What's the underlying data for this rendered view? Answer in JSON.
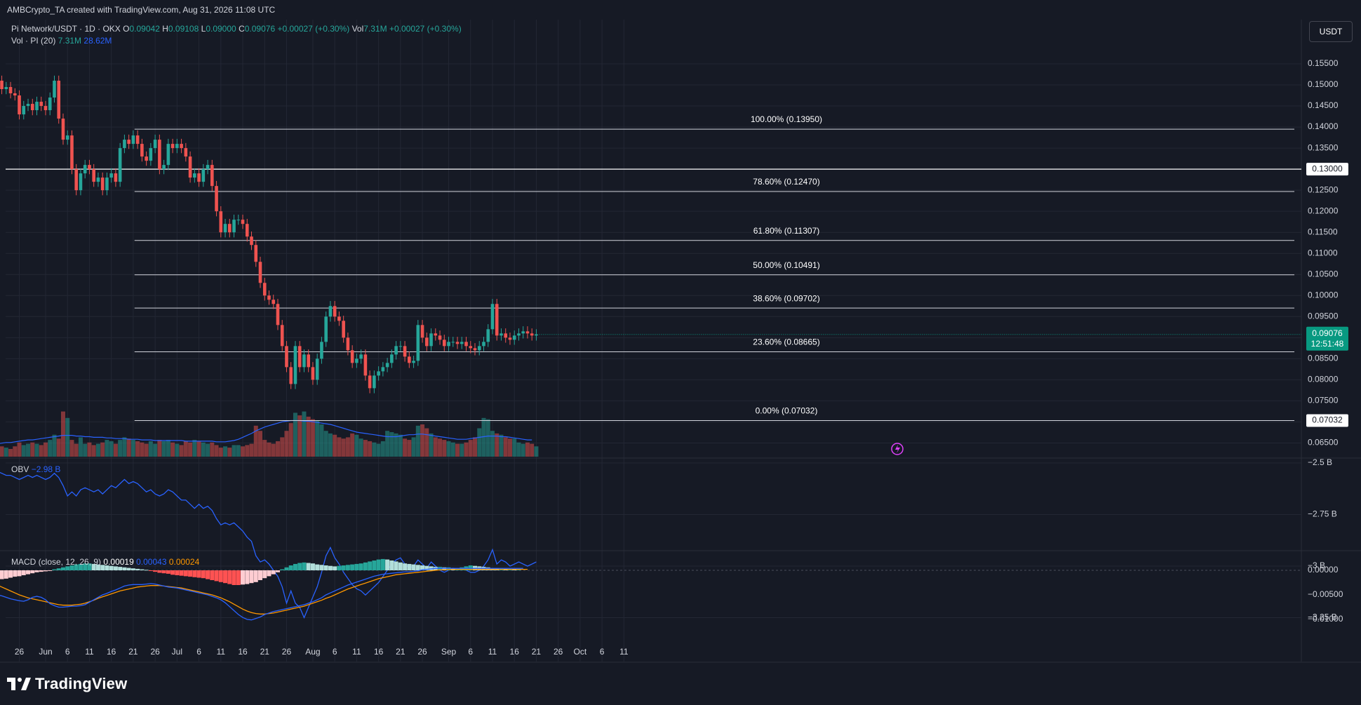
{
  "header": {
    "credit": "AMBCrypto_TA created with TradingView.com, Aug 31, 2026 11:08 UTC",
    "symbol": "Pi Network/USDT · 1D · OKX",
    "ohlc": {
      "o_label": "O",
      "o": "0.09042",
      "h_label": "H",
      "h": "0.09108",
      "l_label": "L",
      "l": "0.09000",
      "c_label": "C",
      "c": "0.09076",
      "change": "+0.00027 (+0.30%)"
    },
    "vol_label": "Vol",
    "vol_value": "7.31M",
    "vol_change": "+0.00027 (+0.30%)",
    "vol_indicator": "Vol · PI (20)",
    "vol_a": "7.31M",
    "vol_b": "28.62M",
    "currency_button": "USDT"
  },
  "colors": {
    "up": "#26a69a",
    "down": "#ef5350",
    "background": "#161a25",
    "grid": "#232734",
    "obv_line": "#2962ff",
    "macd_line": "#2962ff",
    "signal_line": "#ff9800",
    "fib_line": "#d1d4dc",
    "price_tag": "#089981"
  },
  "chart_data": [
    {
      "type": "candlestick",
      "title": "Pi Network/USDT · 1D · OKX",
      "ylim": [
        0.0635,
        0.1575
      ],
      "y_ticks": [
        "0.15500",
        "0.15000",
        "0.14500",
        "0.14000",
        "0.13500",
        "0.13000",
        "0.12500",
        "0.12000",
        "0.11500",
        "0.11000",
        "0.10500",
        "0.10000",
        "0.09500",
        "0.09000",
        "0.08500",
        "0.08000",
        "0.07500",
        "0.07000",
        "0.06500"
      ],
      "x_ticks": [
        {
          "label": "26",
          "d": -6
        },
        {
          "label": "Jun",
          "d": 0
        },
        {
          "label": "6",
          "d": 5
        },
        {
          "label": "11",
          "d": 10
        },
        {
          "label": "16",
          "d": 15
        },
        {
          "label": "21",
          "d": 20
        },
        {
          "label": "26",
          "d": 25
        },
        {
          "label": "Jul",
          "d": 30
        },
        {
          "label": "6",
          "d": 35
        },
        {
          "label": "11",
          "d": 40
        },
        {
          "label": "16",
          "d": 45
        },
        {
          "label": "21",
          "d": 50
        },
        {
          "label": "26",
          "d": 55
        },
        {
          "label": "Aug",
          "d": 61
        },
        {
          "label": "6",
          "d": 66
        },
        {
          "label": "11",
          "d": 71
        },
        {
          "label": "16",
          "d": 76
        },
        {
          "label": "21",
          "d": 81
        },
        {
          "label": "26",
          "d": 86
        },
        {
          "label": "Sep",
          "d": 92
        },
        {
          "label": "6",
          "d": 97
        },
        {
          "label": "11",
          "d": 102
        },
        {
          "label": "16",
          "d": 107
        },
        {
          "label": "21",
          "d": 112
        },
        {
          "label": "26",
          "d": 117
        },
        {
          "label": "Oct",
          "d": 122
        },
        {
          "label": "6",
          "d": 127
        },
        {
          "label": "11",
          "d": 132
        }
      ],
      "closes": [
        0.151,
        0.149,
        0.1495,
        0.148,
        0.1475,
        0.143,
        0.145,
        0.1455,
        0.144,
        0.146,
        0.145,
        0.144,
        0.147,
        0.151,
        0.142,
        0.137,
        0.138,
        0.13,
        0.125,
        0.129,
        0.131,
        0.13,
        0.127,
        0.128,
        0.125,
        0.128,
        0.129,
        0.127,
        0.135,
        0.137,
        0.136,
        0.138,
        0.136,
        0.133,
        0.132,
        0.135,
        0.137,
        0.13,
        0.131,
        0.136,
        0.135,
        0.136,
        0.135,
        0.133,
        0.128,
        0.129,
        0.127,
        0.13,
        0.131,
        0.126,
        0.12,
        0.115,
        0.117,
        0.115,
        0.118,
        0.118,
        0.117,
        0.114,
        0.112,
        0.108,
        0.103,
        0.1,
        0.099,
        0.098,
        0.093,
        0.088,
        0.083,
        0.079,
        0.088,
        0.083,
        0.086,
        0.083,
        0.08,
        0.085,
        0.089,
        0.095,
        0.0975,
        0.095,
        0.094,
        0.09,
        0.087,
        0.084,
        0.085,
        0.086,
        0.081,
        0.078,
        0.081,
        0.082,
        0.083,
        0.084,
        0.086,
        0.088,
        0.088,
        0.0855,
        0.084,
        0.0845,
        0.093,
        0.09,
        0.088,
        0.091,
        0.0905,
        0.0895,
        0.088,
        0.089,
        0.089,
        0.0885,
        0.089,
        0.088,
        0.0875,
        0.087,
        0.088,
        0.089,
        0.092,
        0.098,
        0.0905,
        0.091,
        0.09,
        0.0895,
        0.0905,
        0.091,
        0.0915,
        0.091,
        0.0905,
        0.0908
      ],
      "fib_levels": [
        {
          "label": "100.00% (0.13950)",
          "value": 0.1395
        },
        {
          "label": "78.60% (0.12470)",
          "value": 0.1247
        },
        {
          "label": "61.80% (0.11307)",
          "value": 0.11307
        },
        {
          "label": "50.00% (0.10491)",
          "value": 0.10491
        },
        {
          "label": "38.60% (0.09702)",
          "value": 0.09702
        },
        {
          "label": "23.60% (0.08665)",
          "value": 0.08665
        },
        {
          "label": "0.00% (0.07032)",
          "value": 0.07032
        }
      ],
      "horizontal_line": {
        "value": 0.13,
        "tag": "0.13000"
      },
      "price_tags": [
        {
          "value": 0.09076,
          "label": "0.09076",
          "sub": "12:51:48"
        },
        {
          "value": 0.07032,
          "label": "0.07032"
        }
      ]
    },
    {
      "type": "bar",
      "title": "Vol · PI (20)",
      "note": "volume bars overlayed on price pane with moving-average line",
      "values": [
        18,
        16,
        14,
        12,
        16,
        22,
        18,
        20,
        22,
        20,
        18,
        22,
        26,
        34,
        28,
        70,
        60,
        26,
        20,
        30,
        20,
        22,
        18,
        20,
        22,
        26,
        24,
        20,
        26,
        30,
        28,
        26,
        24,
        22,
        20,
        24,
        20,
        26,
        24,
        26,
        22,
        20,
        18,
        24,
        22,
        26,
        24,
        22,
        20,
        22,
        18,
        14,
        16,
        14,
        18,
        18,
        16,
        18,
        20,
        48,
        40,
        26,
        22,
        20,
        24,
        30,
        40,
        52,
        68,
        64,
        70,
        62,
        58,
        56,
        50,
        40,
        36,
        34,
        30,
        28,
        30,
        36,
        34,
        28,
        26,
        24,
        22,
        20,
        24,
        40,
        38,
        36,
        34,
        28,
        26,
        30,
        48,
        50,
        44,
        36,
        30,
        28,
        26,
        24,
        22,
        20,
        20,
        22,
        26,
        30,
        44,
        60,
        58,
        40,
        36,
        34,
        30,
        28,
        28,
        22,
        20,
        22,
        20,
        16
      ],
      "vol_ma": [
        20,
        21,
        22,
        22,
        23,
        24,
        25,
        26,
        26,
        27,
        28,
        29,
        30,
        31,
        32,
        33,
        33,
        33,
        32,
        32,
        31,
        31,
        30,
        30,
        30,
        29,
        29,
        28,
        28,
        28,
        27,
        27,
        27,
        26,
        26,
        26,
        25,
        25,
        25,
        25,
        25,
        25,
        25,
        24,
        24,
        24,
        24,
        24,
        24,
        24,
        23,
        23,
        23,
        24,
        25,
        27,
        30,
        33,
        36,
        40,
        43,
        46,
        48,
        50,
        52,
        54,
        55,
        56,
        56,
        56,
        55,
        55,
        54,
        53,
        52,
        51,
        50,
        48,
        46,
        44,
        42,
        40,
        38,
        37,
        36,
        35,
        34,
        33,
        32,
        31,
        31,
        31,
        32,
        33,
        34,
        34,
        35,
        35,
        34,
        33,
        32,
        31,
        30,
        29,
        28,
        27,
        27,
        27,
        28,
        29,
        30,
        31,
        32,
        32,
        32,
        31,
        31,
        30,
        29,
        28,
        27,
        26,
        26
      ]
    },
    {
      "type": "line",
      "title": "OBV",
      "legend_value": "−2.98 B",
      "y_ticks": [
        "−2.5 B",
        "−2.75 B",
        "−3 B",
        "−3.25 B"
      ],
      "ylim": [
        -3.32,
        -2.5
      ],
      "values": [
        -2.54,
        -2.55,
        -2.56,
        -2.56,
        -2.57,
        -2.58,
        -2.57,
        -2.56,
        -2.57,
        -2.56,
        -2.57,
        -2.58,
        -2.57,
        -2.55,
        -2.57,
        -2.61,
        -2.66,
        -2.64,
        -2.66,
        -2.63,
        -2.62,
        -2.63,
        -2.64,
        -2.63,
        -2.65,
        -2.63,
        -2.61,
        -2.62,
        -2.6,
        -2.58,
        -2.6,
        -2.59,
        -2.6,
        -2.62,
        -2.64,
        -2.63,
        -2.65,
        -2.66,
        -2.65,
        -2.63,
        -2.64,
        -2.66,
        -2.68,
        -2.68,
        -2.7,
        -2.72,
        -2.7,
        -2.72,
        -2.71,
        -2.73,
        -2.77,
        -2.8,
        -2.79,
        -2.8,
        -2.79,
        -2.81,
        -2.83,
        -2.86,
        -2.88,
        -2.95,
        -2.98,
        -2.97,
        -2.99,
        -3.02,
        -3.05,
        -3.1,
        -3.18,
        -3.12,
        -3.18,
        -3.2,
        -3.25,
        -3.2,
        -3.15,
        -3.1,
        -3.03,
        -2.95,
        -2.91,
        -2.96,
        -2.99,
        -3.03,
        -3.06,
        -3.09,
        -3.11,
        -3.12,
        -3.14,
        -3.12,
        -3.1,
        -3.08,
        -3.05,
        -3.02,
        -2.99,
        -2.97,
        -2.96,
        -2.99,
        -3.01,
        -3.0,
        -2.97,
        -2.99,
        -3.01,
        -2.98,
        -3.0,
        -3.02,
        -3.03,
        -3.02,
        -3.01,
        -3.02,
        -3.01,
        -3.02,
        -3.03,
        -3.03,
        -3.02,
        -3.0,
        -2.97,
        -2.92,
        -2.99,
        -2.97,
        -2.98,
        -3.0,
        -2.99,
        -2.98,
        -2.99,
        -3.0,
        -2.99,
        -2.98
      ],
      "x_range_days": [
        -11,
        114
      ]
    },
    {
      "type": "bar",
      "title": "MACD (close, 12, 26, 9)",
      "legend_values": [
        "0.00019",
        "0.00043",
        "0.00024"
      ],
      "y_ticks": [
        "0.00000",
        "−0.00500",
        "−0.01000"
      ],
      "ylim": [
        -0.0125,
        0.0025
      ],
      "histogram": [
        -0.002,
        -0.0018,
        -0.0017,
        -0.0015,
        -0.0013,
        -0.0012,
        -0.001,
        -0.0008,
        -0.0006,
        -0.0004,
        -0.0003,
        -0.0002,
        -0.0001,
        0.0002,
        0.0004,
        0.0006,
        0.0008,
        0.001,
        0.0012,
        0.0013,
        0.0014,
        0.0014,
        0.0013,
        0.0012,
        0.0011,
        0.001,
        0.0009,
        0.0008,
        0.0007,
        0.0006,
        0.0005,
        0.0004,
        0.0003,
        0.0002,
        0.0001,
        -0.0001,
        -0.0003,
        -0.0005,
        -0.0006,
        -0.0007,
        -0.0009,
        -0.001,
        -0.0011,
        -0.0012,
        -0.0013,
        -0.0014,
        -0.0015,
        -0.0016,
        -0.0018,
        -0.002,
        -0.0022,
        -0.0024,
        -0.0026,
        -0.0028,
        -0.003,
        -0.003,
        -0.0029,
        -0.0028,
        -0.0026,
        -0.0024,
        -0.002,
        -0.0016,
        -0.0012,
        -0.0008,
        -0.0004,
        0.0002,
        0.0006,
        0.001,
        0.0013,
        0.0015,
        0.0016,
        0.0015,
        0.0014,
        0.0012,
        0.0011,
        0.001,
        0.0009,
        0.0008,
        0.0009,
        0.001,
        0.0011,
        0.0012,
        0.0013,
        0.0014,
        0.0016,
        0.0018,
        0.002,
        0.0022,
        0.0023,
        0.0022,
        0.002,
        0.0018,
        0.0016,
        0.0014,
        0.0013,
        0.0012,
        0.0011,
        0.001,
        0.0009,
        0.0008,
        0.0007,
        0.0007,
        0.0006,
        0.0006,
        0.0005,
        0.0005,
        0.0006,
        0.0008,
        0.001,
        0.0009,
        0.0008,
        0.0007,
        0.0006,
        0.0005,
        0.0004,
        0.0004,
        0.0003,
        0.0003,
        0.0002,
        0.0002
      ],
      "macd": [
        -0.005,
        -0.0052,
        -0.0055,
        -0.0058,
        -0.006,
        -0.0062,
        -0.0063,
        -0.006,
        -0.0055,
        -0.0053,
        -0.0055,
        -0.006,
        -0.0068,
        -0.0072,
        -0.0075,
        -0.0075,
        -0.0074,
        -0.0073,
        -0.0073,
        -0.0072,
        -0.007,
        -0.0065,
        -0.006,
        -0.0055,
        -0.005,
        -0.0047,
        -0.0043,
        -0.004,
        -0.0036,
        -0.0032,
        -0.003,
        -0.0029,
        -0.0029,
        -0.0029,
        -0.0028,
        -0.0027,
        -0.0028,
        -0.003,
        -0.0032,
        -0.0034,
        -0.0035,
        -0.0036,
        -0.0038,
        -0.004,
        -0.0042,
        -0.0044,
        -0.0046,
        -0.0048,
        -0.005,
        -0.0053,
        -0.0056,
        -0.006,
        -0.0066,
        -0.0074,
        -0.0082,
        -0.009,
        -0.0096,
        -0.01,
        -0.0101,
        -0.0098,
        -0.0095,
        -0.009,
        -0.0087,
        -0.0084,
        -0.0082,
        -0.008,
        -0.0078,
        -0.0076,
        -0.0074,
        -0.0072,
        -0.007,
        -0.0067,
        -0.0064,
        -0.006,
        -0.0056,
        -0.005,
        -0.0046,
        -0.0042,
        -0.0038,
        -0.0034,
        -0.003,
        -0.0027,
        -0.0024,
        -0.0021,
        -0.0018,
        -0.0015,
        -0.0012,
        -0.001,
        -0.0008,
        -0.0007,
        -0.0006,
        -0.0005,
        -0.0004,
        -0.0003,
        -0.0003,
        -0.0002,
        -0.0001,
        0.0001,
        0.0002,
        0.0003,
        0.0004,
        0.0004,
        0.0004,
        0.0004,
        0.0004,
        0.0004,
        0.0004,
        0.0004,
        0.0004,
        0.0004,
        0.0004,
        0.0004,
        0.0004,
        0.0004,
        0.0004,
        0.0004,
        0.0004,
        0.0004,
        0.0004,
        0.0004,
        0.0004
      ],
      "signal": [
        -0.003,
        -0.0034,
        -0.0038,
        -0.0042,
        -0.0046,
        -0.005,
        -0.0053,
        -0.0056,
        -0.0058,
        -0.006,
        -0.0062,
        -0.0064,
        -0.0066,
        -0.0068,
        -0.007,
        -0.0071,
        -0.0071,
        -0.0071,
        -0.007,
        -0.0069,
        -0.0067,
        -0.0064,
        -0.0061,
        -0.0057,
        -0.0054,
        -0.0051,
        -0.0048,
        -0.0045,
        -0.0042,
        -0.004,
        -0.0038,
        -0.0036,
        -0.0034,
        -0.0033,
        -0.0032,
        -0.0031,
        -0.0031,
        -0.0031,
        -0.0032,
        -0.0033,
        -0.0034,
        -0.0035,
        -0.0036,
        -0.0038,
        -0.004,
        -0.0042,
        -0.0044,
        -0.0046,
        -0.0048,
        -0.005,
        -0.0053,
        -0.0056,
        -0.006,
        -0.0064,
        -0.0069,
        -0.0074,
        -0.0079,
        -0.0083,
        -0.0086,
        -0.0088,
        -0.0089,
        -0.0089,
        -0.0088,
        -0.0087,
        -0.0085,
        -0.0083,
        -0.0081,
        -0.0079,
        -0.0077,
        -0.0075,
        -0.0073,
        -0.007,
        -0.0067,
        -0.0064,
        -0.0061,
        -0.0057,
        -0.0054,
        -0.005,
        -0.0046,
        -0.0042,
        -0.0038,
        -0.0035,
        -0.0032,
        -0.0029,
        -0.0026,
        -0.0023,
        -0.002,
        -0.0017,
        -0.0015,
        -0.0013,
        -0.0011,
        -0.0009,
        -0.0008,
        -0.0007,
        -0.0006,
        -0.0005,
        -0.0004,
        -0.0003,
        -0.0002,
        -0.0001,
        0.0,
        0.0001,
        0.0001,
        0.0002,
        0.0002,
        0.0002,
        0.0002,
        0.0002,
        0.0002,
        0.0002,
        0.0002,
        0.0002,
        0.0002,
        0.0002,
        0.0002,
        0.0002,
        0.0002,
        0.0002,
        0.0002,
        0.0002,
        0.0002,
        0.0002
      ]
    }
  ],
  "brand": {
    "name": "TradingView"
  }
}
